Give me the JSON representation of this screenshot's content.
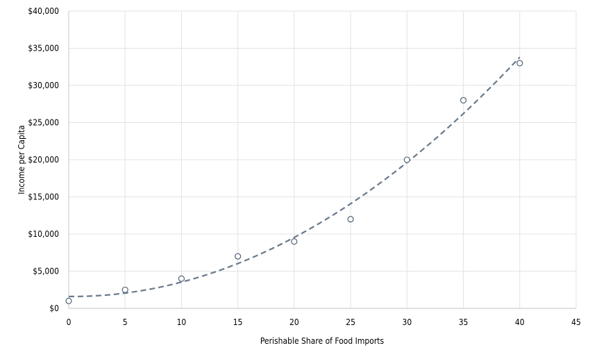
{
  "chart_data": {
    "type": "scatter",
    "title": "",
    "xlabel": "Perishable Share of Food Imports",
    "ylabel": "Income per Capita",
    "xlim": [
      0,
      45
    ],
    "ylim": [
      0,
      40000
    ],
    "x_ticks": [
      0,
      5,
      10,
      15,
      20,
      25,
      30,
      35,
      40,
      45
    ],
    "x_tick_labels": [
      "0",
      "5",
      "10",
      "15",
      "20",
      "25",
      "30",
      "35",
      "40",
      "45"
    ],
    "y_ticks": [
      0,
      5000,
      10000,
      15000,
      20000,
      25000,
      30000,
      35000,
      40000
    ],
    "y_tick_labels": [
      "$0",
      "$5,000",
      "$10,000",
      "$15,000",
      "$20,000",
      "$25,000",
      "$30,000",
      "$35,000",
      "$40,000"
    ],
    "grid": true,
    "legend": "none",
    "series": [
      {
        "x": [
          0,
          5,
          10,
          15,
          20,
          25,
          30,
          35,
          40
        ],
        "y": [
          1000,
          2500,
          4000,
          7000,
          9000,
          12000,
          20000,
          28000,
          33000
        ],
        "marker": "open-circle",
        "color": "#44546a"
      }
    ],
    "trendline": {
      "type": "polynomial",
      "order": 2,
      "style": "dashed",
      "color": "#6b7b8c",
      "x_range": [
        0,
        40
      ]
    }
  }
}
